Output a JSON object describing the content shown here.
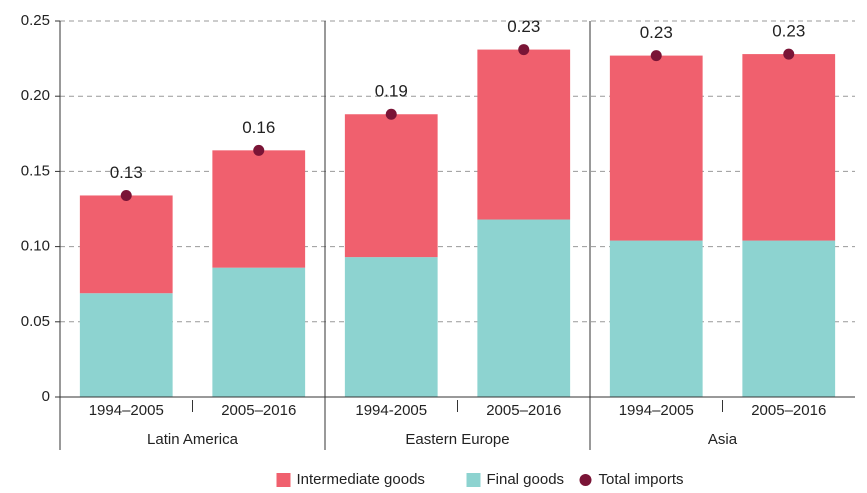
{
  "chart_data": {
    "type": "stacked_bar",
    "categories": [
      "1994–2005",
      "2005–2016",
      "1994-2005",
      "2005–2016",
      "1994–2005",
      "2005–2016"
    ],
    "groups": [
      "Latin America",
      "Eastern Europe",
      "Asia"
    ],
    "series": [
      {
        "name": "Intermediate goods",
        "color": "#f0606e",
        "values": [
          0.065,
          0.078,
          0.095,
          0.113,
          0.123,
          0.124
        ]
      },
      {
        "name": "Final goods",
        "color": "#8dd3d0",
        "values": [
          0.069,
          0.086,
          0.093,
          0.118,
          0.104,
          0.104
        ]
      },
      {
        "name": "Total imports",
        "color": "#7a1436",
        "type": "dot",
        "values": [
          0.134,
          0.164,
          0.188,
          0.231,
          0.227,
          0.228
        ],
        "value_labels": [
          "0.13",
          "0.16",
          "0.19",
          "0.23",
          "0.23",
          "0.23"
        ]
      }
    ],
    "ylim": [
      0,
      0.25
    ],
    "yticks": [
      0,
      0.05,
      {
        "value": 0.1,
        "label": "0.10"
      },
      0.15,
      {
        "value": 0.2,
        "label": "0.20"
      },
      0.25
    ],
    "grid": true,
    "legend": "bottom"
  }
}
